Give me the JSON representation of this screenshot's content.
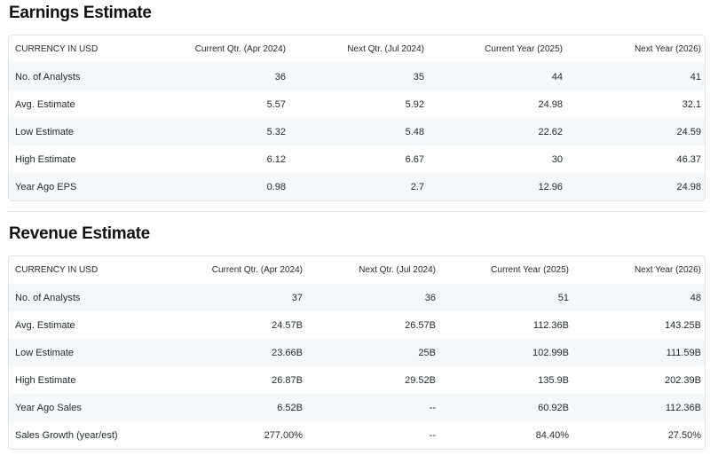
{
  "earnings": {
    "title": "Earnings Estimate",
    "columns": [
      "CURRENCY IN USD",
      "Current Qtr. (Apr 2024)",
      "Next Qtr. (Jul 2024)",
      "Current Year (2025)",
      "Next Year (2026)"
    ],
    "rows": [
      [
        "No. of Analysts",
        "36",
        "35",
        "44",
        "41"
      ],
      [
        "Avg. Estimate",
        "5.57",
        "5.92",
        "24.98",
        "32.1"
      ],
      [
        "Low Estimate",
        "5.32",
        "5.48",
        "22.62",
        "24.59"
      ],
      [
        "High Estimate",
        "6.12",
        "6.67",
        "30",
        "46.37"
      ],
      [
        "Year Ago EPS",
        "0.98",
        "2.7",
        "12.96",
        "24.98"
      ]
    ]
  },
  "revenue": {
    "title": "Revenue Estimate",
    "columns": [
      "CURRENCY IN USD",
      "Current Qtr. (Apr 2024)",
      "Next Qtr. (Jul 2024)",
      "Current Year (2025)",
      "Next Year (2026)"
    ],
    "rows": [
      [
        "No. of Analysts",
        "37",
        "36",
        "51",
        "48"
      ],
      [
        "Avg. Estimate",
        "24.57B",
        "26.57B",
        "112.36B",
        "143.25B"
      ],
      [
        "Low Estimate",
        "23.66B",
        "25B",
        "102.99B",
        "111.59B"
      ],
      [
        "High Estimate",
        "26.87B",
        "29.52B",
        "135.9B",
        "202.39B"
      ],
      [
        "Year Ago Sales",
        "6.52B",
        "--",
        "60.92B",
        "112.36B"
      ],
      [
        "Sales Growth (year/est)",
        "277.00%",
        "--",
        "84.40%",
        "27.50%"
      ]
    ]
  }
}
